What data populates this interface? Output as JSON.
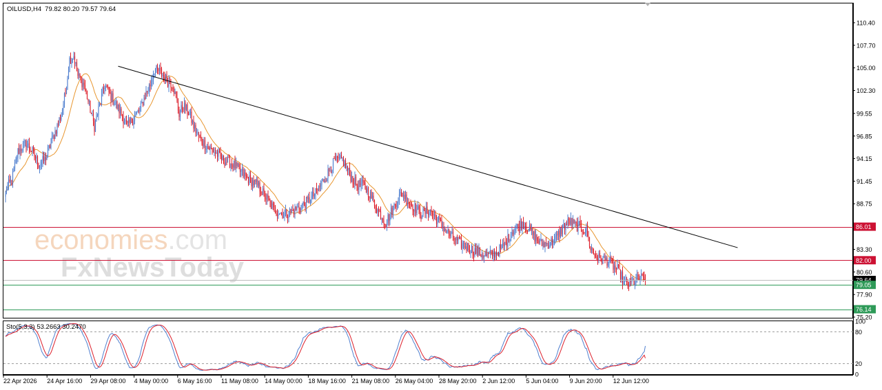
{
  "header": {
    "symbol_label": "OILUSD,H4",
    "ohlc": "79.82 80.20 79.57 79.64"
  },
  "indicator": {
    "label": "Sto(5,3,3) 53.2663 30.2470",
    "levels": [
      "100",
      "80",
      "20",
      "0"
    ]
  },
  "watermark": {
    "line1": "economies",
    "line1_suffix": ".com",
    "line2": "FxNewsToday"
  },
  "colors": {
    "bull": "#4f7fcf",
    "bear": "#dd1f2b",
    "ma": "#e8962f",
    "trendline": "#000000",
    "resistance": "#cc1133",
    "support": "#2e9a58",
    "stoch_main": "#4f7fcf",
    "stoch_signal": "#dd1f2b"
  },
  "chart_data": {
    "type": "candlestick",
    "price_axis_ticks": [
      "110.40",
      "107.70",
      "105.00",
      "102.30",
      "99.55",
      "96.85",
      "94.15",
      "91.45",
      "88.75",
      "86.01",
      "83.30",
      "82.00",
      "80.60",
      "79.64",
      "79.05",
      "77.90",
      "76.14",
      "75.20"
    ],
    "time_axis_labels": [
      "22 Apr 2026",
      "24 Apr 16:00",
      "29 Apr 08:00",
      "4 May 00:00",
      "6 May 16:00",
      "11 May 08:00",
      "14 May 00:00",
      "18 May 16:00",
      "21 May 08:00",
      "26 May 04:00",
      "28 May 20:00",
      "2 Jun 12:00",
      "5 Jun 04:00",
      "9 Jun 20:00",
      "12 Jun 12:00"
    ],
    "ylim": [
      75.2,
      110.4
    ],
    "horizontal_levels": [
      {
        "value": 86.01,
        "label": "86.01",
        "color": "#cc1133"
      },
      {
        "value": 82.0,
        "label": "82.00",
        "color": "#cc1133"
      },
      {
        "value": 79.05,
        "label": "79.05",
        "color": "#2e9a58"
      },
      {
        "value": 76.14,
        "label": "76.14",
        "color": "#2e9a58"
      }
    ],
    "current_price": {
      "value": 79.64,
      "label": "79.64"
    },
    "trendline": {
      "from": {
        "bar": 109,
        "price": 105.2
      },
      "to": {
        "bar": 255,
        "price": 83.5
      }
    },
    "close_path": [
      [
        0,
        90.5
      ],
      [
        6,
        91.5
      ],
      [
        12,
        95
      ],
      [
        20,
        96
      ],
      [
        26,
        95
      ],
      [
        32,
        93.5
      ],
      [
        38,
        94
      ],
      [
        44,
        96
      ],
      [
        50,
        98
      ],
      [
        54,
        99.5
      ],
      [
        58,
        102
      ],
      [
        62,
        106
      ],
      [
        66,
        106.5
      ],
      [
        70,
        104
      ],
      [
        76,
        103
      ],
      [
        80,
        101
      ],
      [
        86,
        98
      ],
      [
        92,
        101
      ],
      [
        96,
        103
      ],
      [
        100,
        102
      ],
      [
        106,
        100.8
      ],
      [
        112,
        99.5
      ],
      [
        118,
        98
      ],
      [
        124,
        99
      ],
      [
        130,
        100
      ],
      [
        136,
        102
      ],
      [
        140,
        103
      ],
      [
        144,
        104.8
      ],
      [
        150,
        104.5
      ],
      [
        156,
        103.5
      ],
      [
        162,
        103
      ],
      [
        168,
        99.5
      ],
      [
        172,
        100.5
      ],
      [
        178,
        99.5
      ],
      [
        182,
        98
      ],
      [
        188,
        96.5
      ],
      [
        192,
        96
      ],
      [
        196,
        95.5
      ],
      [
        202,
        95
      ],
      [
        210,
        94
      ],
      [
        220,
        93.5
      ],
      [
        232,
        92
      ],
      [
        245,
        90.8
      ],
      [
        260,
        88
      ],
      [
        270,
        87.5
      ],
      [
        280,
        88
      ],
      [
        292,
        89
      ],
      [
        300,
        90
      ],
      [
        310,
        92
      ],
      [
        318,
        93.8
      ],
      [
        326,
        94
      ],
      [
        334,
        92
      ],
      [
        340,
        91
      ],
      [
        346,
        91
      ],
      [
        352,
        90
      ],
      [
        360,
        88
      ],
      [
        368,
        86.5
      ],
      [
        374,
        88
      ],
      [
        380,
        89.5
      ],
      [
        384,
        90
      ],
      [
        390,
        89
      ],
      [
        396,
        88.3
      ],
      [
        402,
        87.5
      ],
      [
        410,
        88
      ],
      [
        420,
        86.5
      ],
      [
        430,
        85
      ],
      [
        440,
        84
      ],
      [
        448,
        83.5
      ],
      [
        456,
        83
      ],
      [
        466,
        82.5
      ],
      [
        476,
        83
      ],
      [
        484,
        84
      ],
      [
        490,
        85.5
      ],
      [
        496,
        86
      ],
      [
        500,
        86.5
      ],
      [
        506,
        85.8
      ],
      [
        512,
        84.8
      ],
      [
        518,
        84
      ],
      [
        526,
        84
      ],
      [
        532,
        84.5
      ],
      [
        540,
        86
      ],
      [
        546,
        86.7
      ],
      [
        550,
        86.2
      ],
      [
        556,
        86
      ],
      [
        562,
        85.5
      ],
      [
        566,
        83.5
      ],
      [
        570,
        82.6
      ],
      [
        576,
        82.1
      ],
      [
        582,
        82
      ],
      [
        586,
        81.6
      ],
      [
        590,
        81
      ],
      [
        594,
        80.7
      ],
      [
        598,
        79.3
      ],
      [
        602,
        79.1
      ],
      [
        608,
        79.5
      ],
      [
        614,
        79.9
      ],
      [
        619,
        79.64
      ]
    ],
    "stochastic": {
      "main_period": 5,
      "signal_period": 3,
      "slowing": 3,
      "main_value": 53.2663,
      "signal_value": 30.247
    }
  }
}
